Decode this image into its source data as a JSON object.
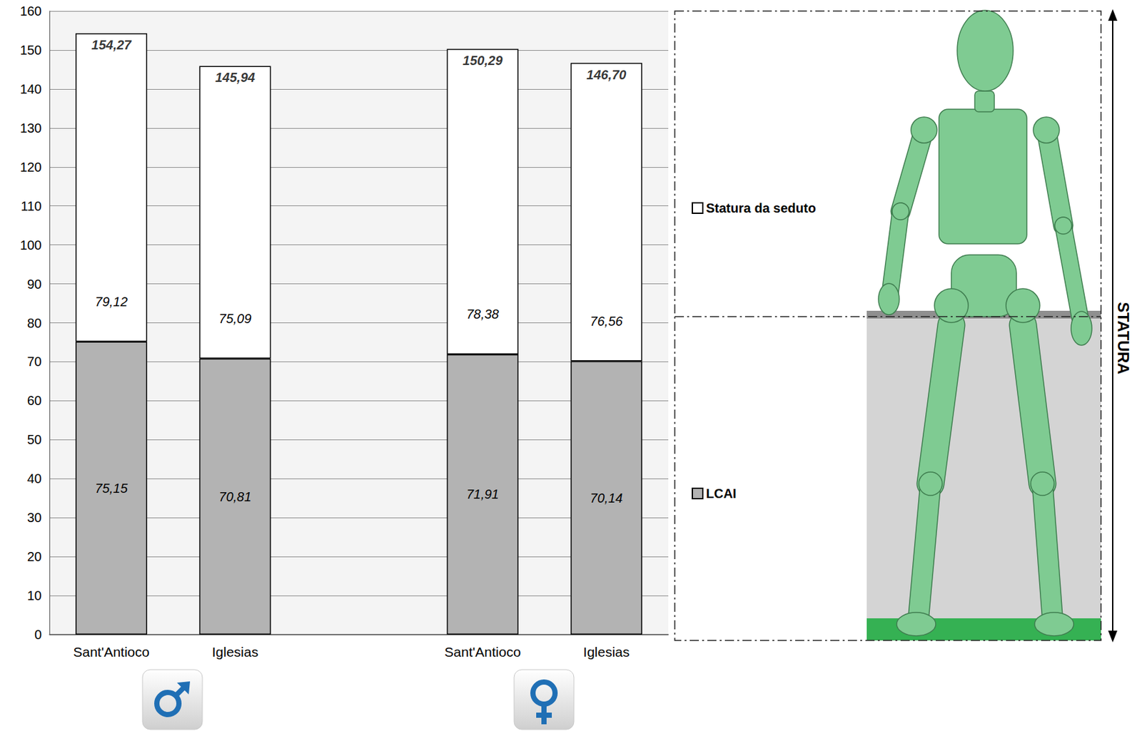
{
  "chart_data": {
    "type": "bar",
    "stacked": true,
    "categories": [
      "Sant'Antioco",
      "Iglesias",
      null,
      "Sant'Antioco",
      "Iglesias"
    ],
    "series": [
      {
        "name": "LCAI",
        "color": "#b3b3b3",
        "values": [
          75.15,
          70.81,
          null,
          71.91,
          70.14
        ],
        "value_labels": [
          "75,15",
          "70,81",
          null,
          "71,91",
          "70,14"
        ]
      },
      {
        "name": "Statura da seduto",
        "color": "#ffffff",
        "values": [
          79.12,
          75.09,
          null,
          78.38,
          76.56
        ],
        "value_labels": [
          "79,12",
          "75,09",
          null,
          "78,38",
          "76,56"
        ]
      }
    ],
    "totals": [
      154.27,
      145.94,
      null,
      150.29,
      146.7
    ],
    "total_labels": [
      "154,27",
      "145,94",
      null,
      "150,29",
      "146,70"
    ],
    "ylim": [
      0,
      160
    ],
    "yticks": [
      0,
      10,
      20,
      30,
      40,
      50,
      60,
      70,
      80,
      90,
      100,
      110,
      120,
      130,
      140,
      150,
      160
    ],
    "grid": true,
    "data_labels": true,
    "legend": "right",
    "annotations": [
      "STATURA"
    ]
  }
}
